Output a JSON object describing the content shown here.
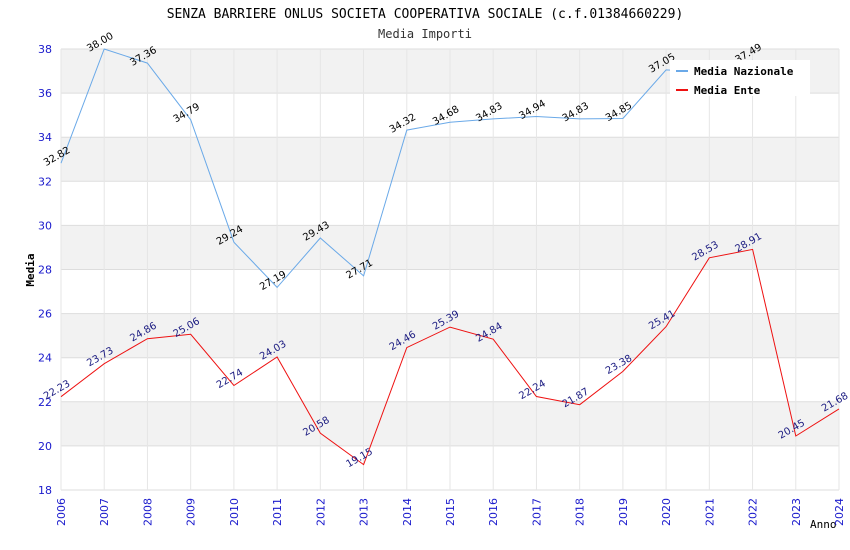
{
  "chart_data": {
    "type": "line",
    "title": "SENZA BARRIERE ONLUS SOCIETA COOPERATIVA SOCIALE (c.f.01384660229)",
    "subtitle": "Media Importi",
    "xlabel": "Anno",
    "ylabel": "Media",
    "ylim": [
      18,
      38
    ],
    "yticks": [
      "18",
      "20",
      "22",
      "24",
      "26",
      "28",
      "30",
      "32",
      "34",
      "36",
      "38"
    ],
    "x": [
      "2006",
      "2007",
      "2008",
      "2009",
      "2010",
      "2011",
      "2012",
      "2013",
      "2014",
      "2015",
      "2016",
      "2017",
      "2018",
      "2019",
      "2020",
      "2021",
      "2022",
      "2023",
      "2024"
    ],
    "grid": true,
    "legend_position": "top-right",
    "series": [
      {
        "name": "Media Nazionale",
        "color": "#6aa9e8",
        "label_color": "#000000",
        "values": [
          32.82,
          38.0,
          37.36,
          34.79,
          29.24,
          27.19,
          29.43,
          27.71,
          34.32,
          34.68,
          34.83,
          34.94,
          34.83,
          34.85,
          37.05,
          36.95,
          37.49,
          null,
          null
        ],
        "labels": [
          "32.82",
          "38.00",
          "37.36",
          "34.79",
          "29.24",
          "27.19",
          "29.43",
          "27.71",
          "34.32",
          "34.68",
          "34.83",
          "34.94",
          "34.83",
          "34.85",
          "37.05",
          "",
          "37.49",
          "",
          ""
        ]
      },
      {
        "name": "Media Ente",
        "color": "#ee1111",
        "label_color": "#1a1a80",
        "values": [
          22.23,
          23.73,
          24.86,
          25.06,
          22.74,
          24.03,
          20.58,
          19.15,
          24.46,
          25.39,
          24.84,
          22.24,
          21.87,
          23.38,
          25.41,
          28.53,
          28.91,
          20.45,
          21.68
        ],
        "labels": [
          "22.23",
          "23.73",
          "24.86",
          "25.06",
          "22.74",
          "24.03",
          "20.58",
          "19.15",
          "24.46",
          "25.39",
          "24.84",
          "22.24",
          "21.87",
          "23.38",
          "25.41",
          "28.53",
          "28.91",
          "20.45",
          "21.68"
        ]
      }
    ]
  }
}
